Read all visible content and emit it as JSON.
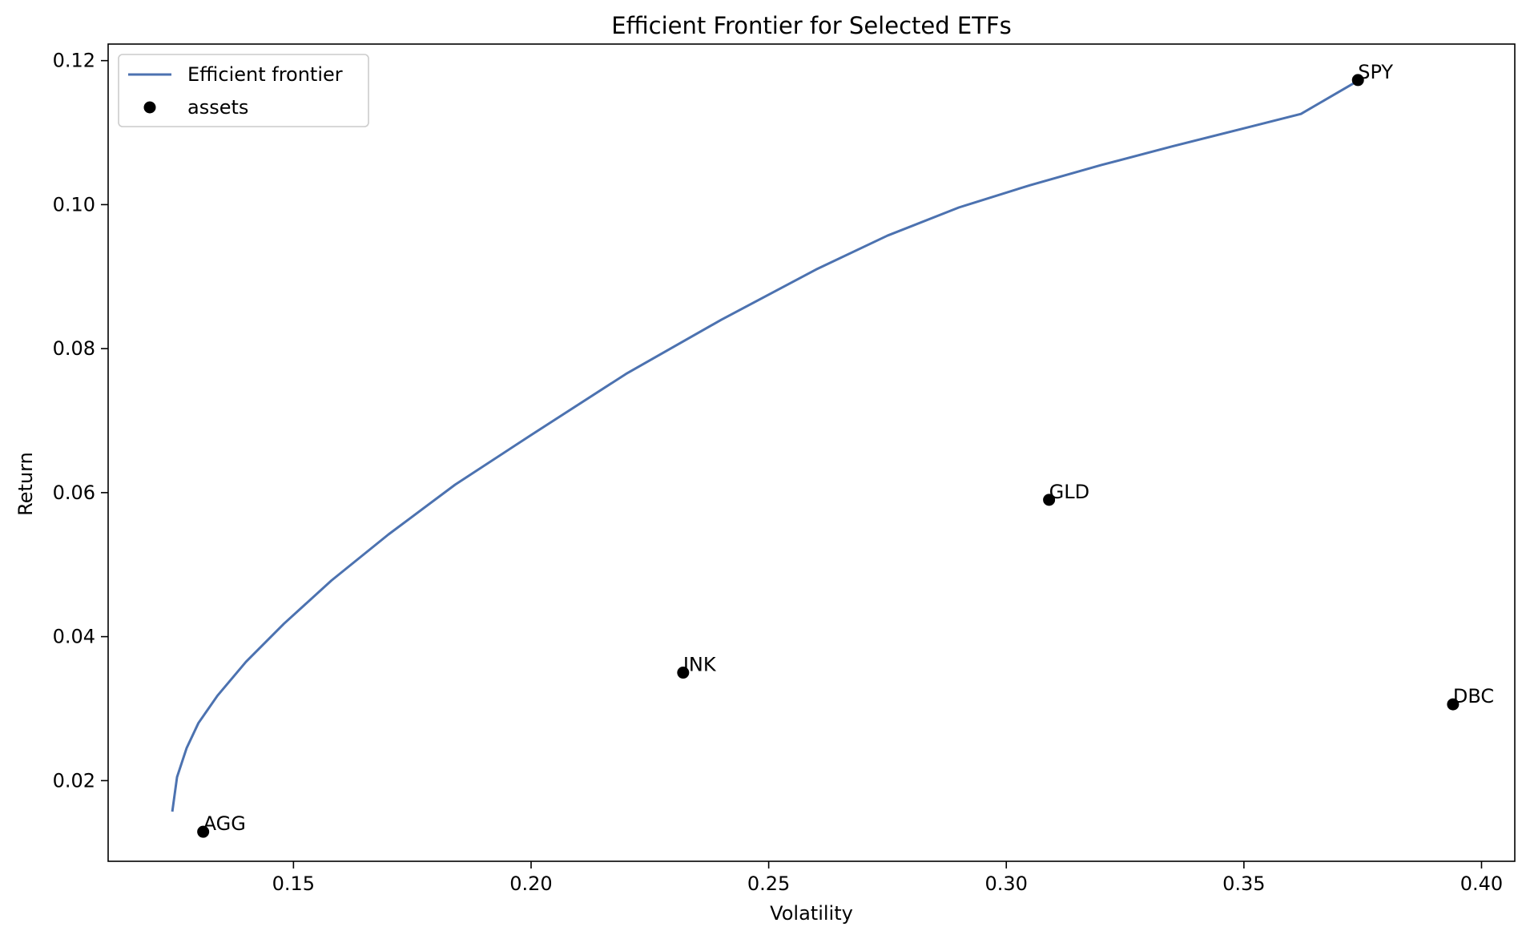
{
  "chart_data": {
    "type": "scatter",
    "title": "Efficient Frontier for Selected ETFs",
    "xlabel": "Volatility",
    "ylabel": "Return",
    "xlim": [
      0.111,
      0.407
    ],
    "ylim": [
      0.0088,
      0.1223
    ],
    "xticks": [
      0.15,
      0.2,
      0.25,
      0.3,
      0.35,
      0.4
    ],
    "xtick_labels": [
      "0.15",
      "0.20",
      "0.25",
      "0.30",
      "0.35",
      "0.40"
    ],
    "yticks": [
      0.02,
      0.04,
      0.06,
      0.08,
      0.1,
      0.12
    ],
    "ytick_labels": [
      "0.02",
      "0.04",
      "0.06",
      "0.08",
      "0.10",
      "0.12"
    ],
    "grid": false,
    "legend_position": "top-left",
    "series": [
      {
        "name": "Efficient frontier",
        "kind": "line",
        "color": "#4c72b0",
        "points": [
          [
            0.1245,
            0.0157
          ],
          [
            0.1255,
            0.0205
          ],
          [
            0.1275,
            0.0245
          ],
          [
            0.13,
            0.028
          ],
          [
            0.134,
            0.0318
          ],
          [
            0.14,
            0.0365
          ],
          [
            0.148,
            0.0418
          ],
          [
            0.158,
            0.0478
          ],
          [
            0.17,
            0.0542
          ],
          [
            0.184,
            0.0611
          ],
          [
            0.2,
            0.068
          ],
          [
            0.22,
            0.0765
          ],
          [
            0.24,
            0.084
          ],
          [
            0.26,
            0.091
          ],
          [
            0.275,
            0.0957
          ],
          [
            0.29,
            0.0996
          ],
          [
            0.305,
            0.1027
          ],
          [
            0.32,
            0.1055
          ],
          [
            0.335,
            0.1081
          ],
          [
            0.35,
            0.1106
          ],
          [
            0.362,
            0.1126
          ],
          [
            0.374,
            0.1172
          ]
        ]
      },
      {
        "name": "assets",
        "kind": "scatter",
        "color": "#000000",
        "points": [
          {
            "label": "AGG",
            "x": 0.131,
            "y": 0.0129
          },
          {
            "label": "JNK",
            "x": 0.232,
            "y": 0.035
          },
          {
            "label": "GLD",
            "x": 0.309,
            "y": 0.059
          },
          {
            "label": "SPY",
            "x": 0.374,
            "y": 0.1173
          },
          {
            "label": "DBC",
            "x": 0.394,
            "y": 0.0306
          }
        ]
      }
    ]
  }
}
